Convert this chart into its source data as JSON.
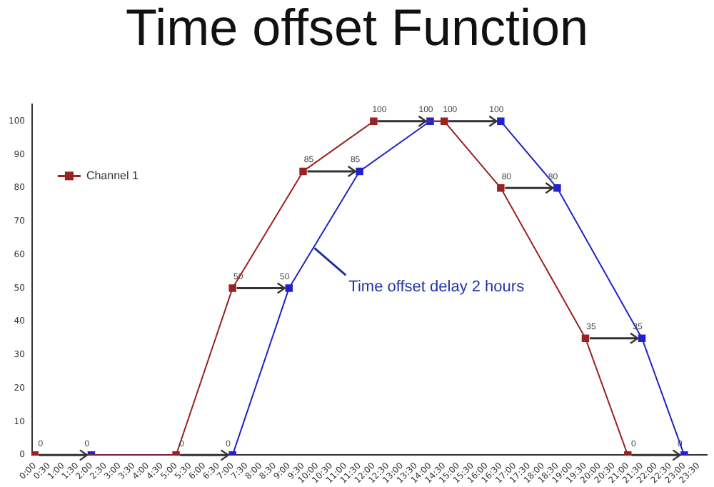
{
  "chart_data": {
    "type": "line",
    "title": "Time offset Function",
    "xlim": [
      -0.1,
      23.8
    ],
    "xticks": [
      {
        "value": 0,
        "label": "0:00"
      },
      {
        "value": 0.5,
        "label": "0:30"
      },
      {
        "value": 1,
        "label": "1:00"
      },
      {
        "value": 1.5,
        "label": "1:30"
      },
      {
        "value": 2,
        "label": "2:00"
      },
      {
        "value": 2.5,
        "label": "2:30"
      },
      {
        "value": 3,
        "label": "3:00"
      },
      {
        "value": 3.5,
        "label": "3:30"
      },
      {
        "value": 4,
        "label": "4:00"
      },
      {
        "value": 4.5,
        "label": "4:30"
      },
      {
        "value": 5,
        "label": "5:00"
      },
      {
        "value": 5.5,
        "label": "5:30"
      },
      {
        "value": 6,
        "label": "6:00"
      },
      {
        "value": 6.5,
        "label": "6:30"
      },
      {
        "value": 7,
        "label": "7:00"
      },
      {
        "value": 7.5,
        "label": "7:30"
      },
      {
        "value": 8,
        "label": "8:00"
      },
      {
        "value": 8.5,
        "label": "8:30"
      },
      {
        "value": 9,
        "label": "9:00"
      },
      {
        "value": 9.5,
        "label": "9:30"
      },
      {
        "value": 10,
        "label": "10:00"
      },
      {
        "value": 10.5,
        "label": "10:30"
      },
      {
        "value": 11,
        "label": "11:00"
      },
      {
        "value": 11.5,
        "label": "11:30"
      },
      {
        "value": 12,
        "label": "12:00"
      },
      {
        "value": 12.5,
        "label": "12:30"
      },
      {
        "value": 13,
        "label": "13:00"
      },
      {
        "value": 13.5,
        "label": "13:30"
      },
      {
        "value": 14,
        "label": "14:00"
      },
      {
        "value": 14.5,
        "label": "14:30"
      },
      {
        "value": 15,
        "label": "15:00"
      },
      {
        "value": 15.5,
        "label": "15:30"
      },
      {
        "value": 16,
        "label": "16:00"
      },
      {
        "value": 16.5,
        "label": "16:30"
      },
      {
        "value": 17,
        "label": "17:00"
      },
      {
        "value": 17.5,
        "label": "17:30"
      },
      {
        "value": 18,
        "label": "18:00"
      },
      {
        "value": 18.5,
        "label": "18:30"
      },
      {
        "value": 19,
        "label": "19:00"
      },
      {
        "value": 19.5,
        "label": "19:30"
      },
      {
        "value": 20,
        "label": "20:00"
      },
      {
        "value": 20.5,
        "label": "20:30"
      },
      {
        "value": 21,
        "label": "21:00"
      },
      {
        "value": 21.5,
        "label": "21:30"
      },
      {
        "value": 22,
        "label": "22:00"
      },
      {
        "value": 22.5,
        "label": "22:30"
      },
      {
        "value": 23,
        "label": "23:00"
      },
      {
        "value": 23.5,
        "label": "23:30"
      }
    ],
    "ylim": [
      0,
      105
    ],
    "yticks": [
      0,
      10,
      20,
      30,
      40,
      50,
      60,
      70,
      80,
      90,
      100
    ],
    "grid": false,
    "legend": "top left",
    "marker": "square",
    "line_style": "solid",
    "data_labels": true,
    "series": [
      {
        "name": "Channel 1",
        "color": "#992222",
        "x": [
          0,
          5,
          7,
          9.5,
          12,
          14.5,
          16.5,
          19.5,
          21
        ],
        "values": [
          0,
          0,
          50,
          85,
          100,
          100,
          80,
          35,
          0
        ]
      },
      {
        "color": "#2222cc",
        "x": [
          2,
          7,
          9,
          11.5,
          14,
          16.5,
          18.5,
          21.5,
          23
        ],
        "values": [
          0,
          0,
          50,
          85,
          100,
          100,
          80,
          35,
          0
        ]
      }
    ],
    "annotations": [
      {
        "text": "Time offset delay 2 hours",
        "x": 9.9,
        "y": 62
      }
    ]
  }
}
